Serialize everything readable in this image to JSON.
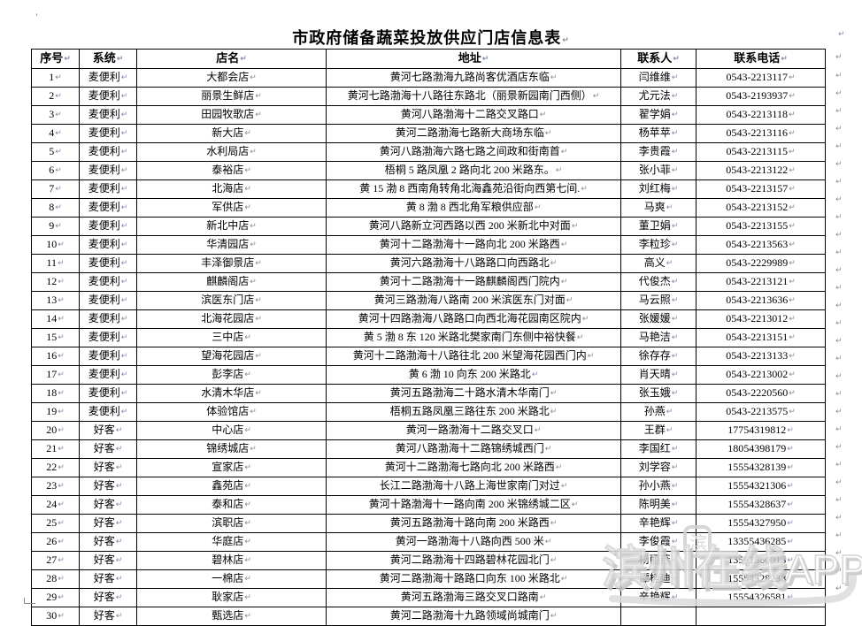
{
  "page": {
    "title": "市政府储备蔬菜投放供应门店信息表"
  },
  "marks": {
    "cell_end": "↵"
  },
  "watermark": {
    "brand_cn": "滨州在线",
    "brand_en": "APP",
    "icon_char": "滨"
  },
  "table": {
    "headers": [
      "序号",
      "系统",
      "店名",
      "地址",
      "联系人",
      "联系电话"
    ],
    "rows": [
      {
        "no": "1",
        "system": "麦便利",
        "name": "大都会店",
        "address": "黄河七路渤海九路尚客优酒店东临",
        "contact": "闫维维",
        "phone": "0543-2213117"
      },
      {
        "no": "2",
        "system": "麦便利",
        "name": "丽景生鲜店",
        "address": "黄河七路渤海十八路往东路北（丽景新园南门西侧）",
        "contact": "尤元法",
        "phone": "0543-2193937"
      },
      {
        "no": "3",
        "system": "麦便利",
        "name": "田园牧歌店",
        "address": "黄河八路渤海十二路交叉路口",
        "contact": "翟学娟",
        "phone": "0543-2213118"
      },
      {
        "no": "4",
        "system": "麦便利",
        "name": "新大店",
        "address": "黄河二路渤海七路新大商场东临",
        "contact": "杨苹苹",
        "phone": "0543-2213116"
      },
      {
        "no": "5",
        "system": "麦便利",
        "name": "水利局店",
        "address": "黄河八路渤海六路七路之间政和街南首",
        "contact": "李贵霞",
        "phone": "0543-2213115"
      },
      {
        "no": "6",
        "system": "麦便利",
        "name": "泰裕店",
        "address": "梧桐 5 路凤凰 2 路向北 200 米路东。",
        "contact": "张小菲",
        "phone": "0543-2213122"
      },
      {
        "no": "7",
        "system": "麦便利",
        "name": "北海店",
        "address": "黄 15 渤 8 西南角转角北海鑫苑沿街向西第七间.",
        "contact": "刘红梅",
        "phone": "0543-2213157"
      },
      {
        "no": "8",
        "system": "麦便利",
        "name": "军供店",
        "address": "黄 8 渤 8 西北角军粮供应部",
        "contact": "马爽",
        "phone": "0543-2213152"
      },
      {
        "no": "9",
        "system": "麦便利",
        "name": "新北中店",
        "address": "黄河八路新立河西路以西 200 米新北中对面",
        "contact": "董卫娟",
        "phone": "0543-2213155"
      },
      {
        "no": "10",
        "system": "麦便利",
        "name": "华清园店",
        "address": "黄河十二路渤海十一路向北 200 米路西",
        "contact": "李粒珍",
        "phone": "0543-2213563"
      },
      {
        "no": "11",
        "system": "麦便利",
        "name": "丰泽御景店",
        "address": "黄河六路渤海十八路路口向西路北",
        "contact": "高义",
        "phone": "0543-2229989"
      },
      {
        "no": "12",
        "system": "麦便利",
        "name": "麒麟阁店",
        "address": "黄河十二路渤海十一路麒麟阁西门院内",
        "contact": "代俊杰",
        "phone": "0543-2213121"
      },
      {
        "no": "13",
        "system": "麦便利",
        "name": "滨医东门店",
        "address": "黄河三路渤海八路南 200 米滨医东门对面",
        "contact": "马云照",
        "phone": "0543-2213636"
      },
      {
        "no": "14",
        "system": "麦便利",
        "name": "北海花园店",
        "address": "黄河十四路渤海八路路口向西北海花园南区院内",
        "contact": "张媛媛",
        "phone": "0543-2213012"
      },
      {
        "no": "15",
        "system": "麦便利",
        "name": "三中店",
        "address": "黄 5 渤 8 东 120 米路北樊家南门东侧中裕快餐",
        "contact": "马艳洁",
        "phone": "0543-2213151"
      },
      {
        "no": "16",
        "system": "麦便利",
        "name": "望海花园店",
        "address": "黄河十二路渤海十八路往北 200 米望海花园西门内",
        "contact": "徐存存",
        "phone": "0543-2213133"
      },
      {
        "no": "17",
        "system": "麦便利",
        "name": "彭李店",
        "address": "黄 6 渤 10 向东 200 米路北",
        "contact": "肖天晴",
        "phone": "0543-2213002"
      },
      {
        "no": "18",
        "system": "麦便利",
        "name": "水清木华店",
        "address": "黄河五路渤海二十路水清木华南门",
        "contact": "张玉娥",
        "phone": "0543-2220560"
      },
      {
        "no": "19",
        "system": "麦便利",
        "name": "体验馆店",
        "address": "梧桐五路凤凰三路往东 200 米路北",
        "contact": "孙燕",
        "phone": "0543-2213575"
      },
      {
        "no": "20",
        "system": "好客",
        "name": "中心店",
        "address": "黄河一路渤海十二路交叉口",
        "contact": "王群",
        "phone": "17754319812"
      },
      {
        "no": "21",
        "system": "好客",
        "name": "锦绣城店",
        "address": "黄河八路渤海十二路锦绣城西门",
        "contact": "李国红",
        "phone": "18054398179"
      },
      {
        "no": "22",
        "system": "好客",
        "name": "宣家店",
        "address": "黄河十二路渤海七路向北 200 米路西",
        "contact": "刘学容",
        "phone": "15554328139"
      },
      {
        "no": "23",
        "system": "好客",
        "name": "鑫苑店",
        "address": "长江二路渤海十八路上海世家南门对过",
        "contact": "孙小燕",
        "phone": "15554321306"
      },
      {
        "no": "24",
        "system": "好客",
        "name": "泰和店",
        "address": "黄河十路渤海十一路向南 200 米锦绣城二区",
        "contact": "陈明美",
        "phone": "15554328637"
      },
      {
        "no": "25",
        "system": "好客",
        "name": "滨职店",
        "address": "黄河五路渤海十路向南 200 米路西",
        "contact": "辛艳辉",
        "phone": "15554327950"
      },
      {
        "no": "26",
        "system": "好客",
        "name": "华庭店",
        "address": "黄河一路渤海十八路向西 500 米",
        "contact": "李俊霞",
        "phone": "13355436285"
      },
      {
        "no": "27",
        "system": "好客",
        "name": "碧林店",
        "address": "黄河二路渤海十四路碧林花园北门",
        "contact": "杨丽燕",
        "phone": "13561560013"
      },
      {
        "no": "28",
        "system": "好客",
        "name": "一棉店",
        "address": "黄河二路渤海十路路口向东 100 米路北",
        "contact": "谭桂迪",
        "phone": "15554328238"
      },
      {
        "no": "29",
        "system": "好客",
        "name": "耿家店",
        "address": "黄河五路渤海三路交叉口路南",
        "contact": "辛艳辉",
        "phone": "15554326581"
      },
      {
        "no": "30",
        "system": "好客",
        "name": "甄选店",
        "address": "黄河二路渤海十九路领域尚城南门",
        "contact": "",
        "phone": ""
      }
    ]
  }
}
